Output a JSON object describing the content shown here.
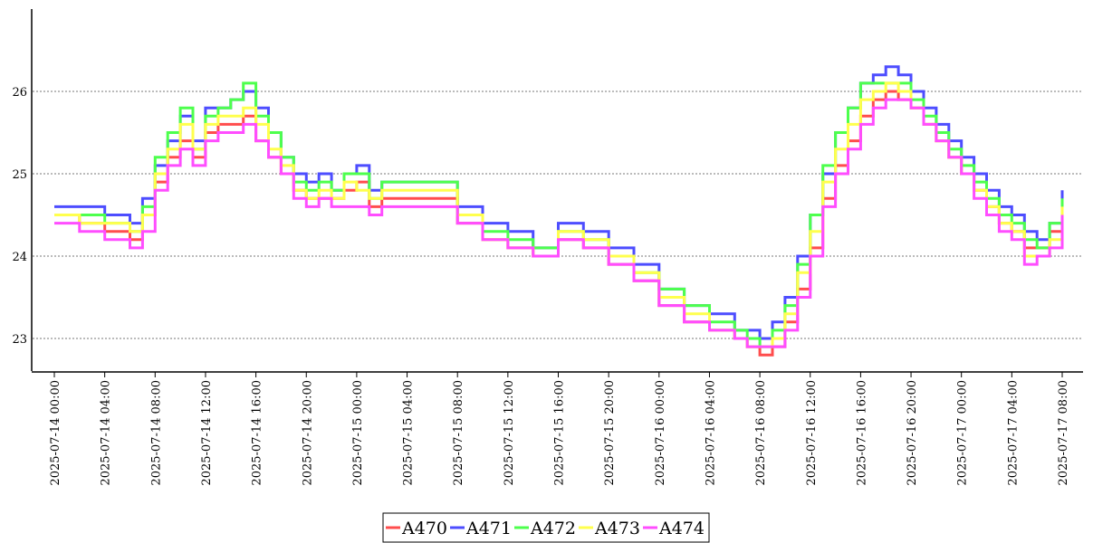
{
  "chart_data": {
    "type": "line",
    "title": "",
    "xlabel": "",
    "ylabel": "",
    "x_ticks": [
      "2025-07-14 00:00",
      "2025-07-14 04:00",
      "2025-07-14 08:00",
      "2025-07-14 12:00",
      "2025-07-14 16:00",
      "2025-07-14 20:00",
      "2025-07-15 00:00",
      "2025-07-15 04:00",
      "2025-07-15 08:00",
      "2025-07-15 12:00",
      "2025-07-15 16:00",
      "2025-07-15 20:00",
      "2025-07-16 00:00",
      "2025-07-16 04:00",
      "2025-07-16 08:00",
      "2025-07-16 12:00",
      "2025-07-16 16:00",
      "2025-07-16 20:00",
      "2025-07-17 00:00",
      "2025-07-17 04:00",
      "2025-07-17 08:00"
    ],
    "y_ticks": [
      "23",
      "24",
      "25",
      "26"
    ],
    "ylim": [
      22.6,
      27.0
    ],
    "grid": "horizontal dotted",
    "legend_position": "bottom-center",
    "x": [
      "2025-07-14 00:00",
      "2025-07-14 02:00",
      "2025-07-14 04:00",
      "2025-07-14 06:00",
      "2025-07-14 07:00",
      "2025-07-14 08:00",
      "2025-07-14 09:00",
      "2025-07-14 10:00",
      "2025-07-14 11:00",
      "2025-07-14 12:00",
      "2025-07-14 13:00",
      "2025-07-14 14:00",
      "2025-07-14 15:00",
      "2025-07-14 16:00",
      "2025-07-14 17:00",
      "2025-07-14 18:00",
      "2025-07-14 19:00",
      "2025-07-14 20:00",
      "2025-07-14 21:00",
      "2025-07-14 22:00",
      "2025-07-14 23:00",
      "2025-07-15 00:00",
      "2025-07-15 01:00",
      "2025-07-15 02:00",
      "2025-07-15 04:00",
      "2025-07-15 06:00",
      "2025-07-15 08:00",
      "2025-07-15 10:00",
      "2025-07-15 12:00",
      "2025-07-15 14:00",
      "2025-07-15 16:00",
      "2025-07-15 18:00",
      "2025-07-15 20:00",
      "2025-07-15 22:00",
      "2025-07-16 00:00",
      "2025-07-16 02:00",
      "2025-07-16 04:00",
      "2025-07-16 06:00",
      "2025-07-16 07:00",
      "2025-07-16 08:00",
      "2025-07-16 09:00",
      "2025-07-16 10:00",
      "2025-07-16 11:00",
      "2025-07-16 12:00",
      "2025-07-16 13:00",
      "2025-07-16 14:00",
      "2025-07-16 15:00",
      "2025-07-16 16:00",
      "2025-07-16 17:00",
      "2025-07-16 18:00",
      "2025-07-16 19:00",
      "2025-07-16 20:00",
      "2025-07-16 21:00",
      "2025-07-16 22:00",
      "2025-07-16 23:00",
      "2025-07-17 00:00",
      "2025-07-17 01:00",
      "2025-07-17 02:00",
      "2025-07-17 03:00",
      "2025-07-17 04:00",
      "2025-07-17 05:00",
      "2025-07-17 06:00",
      "2025-07-17 07:00",
      "2025-07-17 08:00"
    ],
    "series": [
      {
        "name": "A470",
        "color": "#ff4d4d",
        "values": [
          24.5,
          24.4,
          24.3,
          24.2,
          24.5,
          24.9,
          25.2,
          25.4,
          25.2,
          25.5,
          25.6,
          25.6,
          25.7,
          25.4,
          25.2,
          25.0,
          24.8,
          24.7,
          24.7,
          24.7,
          24.8,
          24.9,
          24.6,
          24.7,
          24.7,
          24.7,
          24.4,
          24.2,
          24.1,
          24.0,
          24.2,
          24.1,
          23.9,
          23.7,
          23.4,
          23.2,
          23.1,
          23.0,
          22.9,
          22.8,
          22.9,
          23.2,
          23.6,
          24.1,
          24.7,
          25.1,
          25.4,
          25.7,
          25.9,
          26.0,
          25.9,
          25.8,
          25.6,
          25.4,
          25.2,
          25.0,
          24.8,
          24.6,
          24.4,
          24.3,
          24.1,
          24.1,
          24.3,
          24.6
        ]
      },
      {
        "name": "A471",
        "color": "#4d4dff",
        "values": [
          24.6,
          24.6,
          24.5,
          24.4,
          24.7,
          25.1,
          25.4,
          25.7,
          25.4,
          25.8,
          25.8,
          25.9,
          26.0,
          25.8,
          25.5,
          25.2,
          25.0,
          24.9,
          25.0,
          24.8,
          25.0,
          25.1,
          24.8,
          24.9,
          24.9,
          24.9,
          24.6,
          24.4,
          24.3,
          24.1,
          24.4,
          24.3,
          24.1,
          23.9,
          23.6,
          23.4,
          23.3,
          23.1,
          23.1,
          23.0,
          23.2,
          23.5,
          24.0,
          24.5,
          25.0,
          25.5,
          25.8,
          26.1,
          26.2,
          26.3,
          26.2,
          26.0,
          25.8,
          25.6,
          25.4,
          25.2,
          25.0,
          24.8,
          24.6,
          24.5,
          24.3,
          24.2,
          24.4,
          24.8
        ]
      },
      {
        "name": "A472",
        "color": "#4dff4d",
        "values": [
          24.5,
          24.5,
          24.4,
          24.3,
          24.6,
          25.2,
          25.5,
          25.8,
          25.3,
          25.7,
          25.8,
          25.9,
          26.1,
          25.7,
          25.5,
          25.2,
          24.9,
          24.8,
          24.9,
          24.8,
          25.0,
          25.0,
          24.7,
          24.9,
          24.9,
          24.9,
          24.5,
          24.3,
          24.2,
          24.1,
          24.3,
          24.2,
          24.0,
          23.8,
          23.6,
          23.4,
          23.2,
          23.1,
          23.0,
          22.9,
          23.1,
          23.4,
          23.9,
          24.5,
          25.1,
          25.5,
          25.8,
          26.1,
          26.1,
          26.1,
          26.1,
          25.9,
          25.7,
          25.5,
          25.3,
          25.1,
          24.9,
          24.7,
          24.5,
          24.4,
          24.2,
          24.1,
          24.4,
          24.7
        ]
      },
      {
        "name": "A473",
        "color": "#ffff4d",
        "values": [
          24.5,
          24.4,
          24.4,
          24.3,
          24.5,
          25.0,
          25.3,
          25.6,
          25.3,
          25.6,
          25.7,
          25.7,
          25.8,
          25.6,
          25.3,
          25.1,
          24.8,
          24.7,
          24.8,
          24.7,
          24.9,
          24.8,
          24.7,
          24.8,
          24.8,
          24.8,
          24.5,
          24.2,
          24.1,
          24.0,
          24.3,
          24.2,
          24.0,
          23.8,
          23.5,
          23.3,
          23.1,
          23.0,
          22.9,
          22.9,
          23.0,
          23.3,
          23.8,
          24.3,
          24.9,
          25.3,
          25.6,
          25.9,
          26.0,
          26.1,
          26.0,
          25.8,
          25.6,
          25.4,
          25.2,
          25.0,
          24.8,
          24.6,
          24.4,
          24.3,
          24.0,
          24.0,
          24.2,
          24.6
        ]
      },
      {
        "name": "A474",
        "color": "#ff4dff",
        "values": [
          24.4,
          24.3,
          24.2,
          24.1,
          24.3,
          24.8,
          25.1,
          25.3,
          25.1,
          25.4,
          25.5,
          25.5,
          25.6,
          25.4,
          25.2,
          25.0,
          24.7,
          24.6,
          24.7,
          24.6,
          24.6,
          24.6,
          24.5,
          24.6,
          24.6,
          24.6,
          24.4,
          24.2,
          24.1,
          24.0,
          24.2,
          24.1,
          23.9,
          23.7,
          23.4,
          23.2,
          23.1,
          23.0,
          22.9,
          22.9,
          22.9,
          23.1,
          23.5,
          24.0,
          24.6,
          25.0,
          25.3,
          25.6,
          25.8,
          25.9,
          25.9,
          25.8,
          25.6,
          25.4,
          25.2,
          25.0,
          24.7,
          24.5,
          24.3,
          24.2,
          23.9,
          24.0,
          24.1,
          24.5
        ]
      }
    ]
  }
}
